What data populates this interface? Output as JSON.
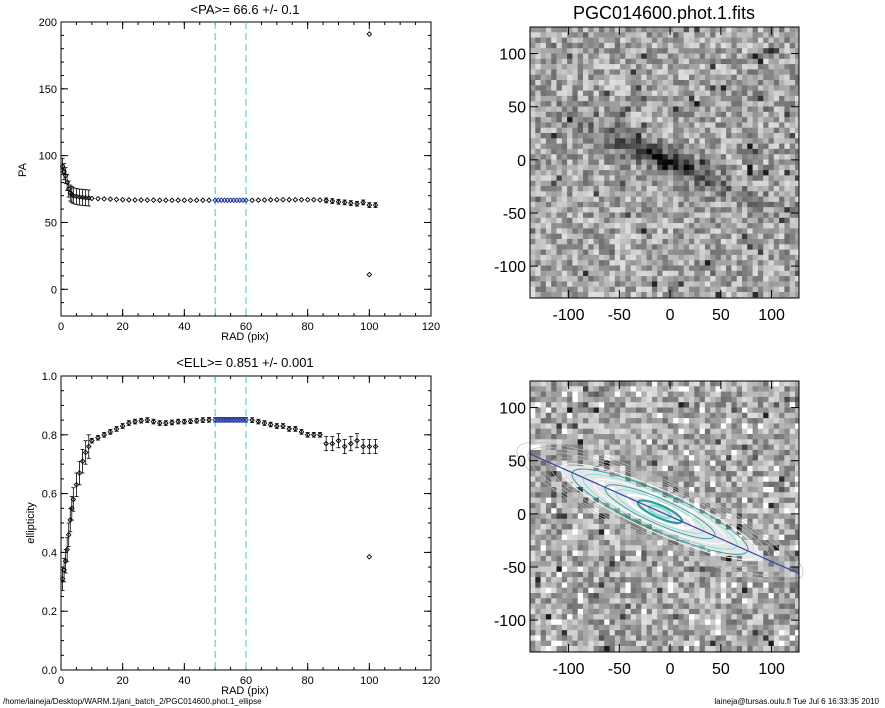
{
  "chart_data": [
    {
      "type": "scatter",
      "title": "<PA>=  66.6 +/-   0.1",
      "xlabel": "RAD (pix)",
      "ylabel": "PA",
      "xlim": [
        0,
        120
      ],
      "ylim": [
        -20,
        200
      ],
      "xticks": [
        "0",
        "20",
        "40",
        "60",
        "80",
        "100",
        "120"
      ],
      "yticks": [
        "0",
        "50",
        "100",
        "150",
        "200"
      ],
      "vlines": [
        50,
        60
      ],
      "highlight_range": [
        50,
        60
      ],
      "outliers": [
        {
          "x": 100,
          "y": 191
        },
        {
          "x": 100,
          "y": 11
        }
      ],
      "x": [
        0.5,
        1,
        1.5,
        2,
        2.5,
        3,
        3.5,
        4,
        5,
        6,
        7,
        8,
        9,
        10,
        12,
        14,
        16,
        18,
        20,
        22,
        24,
        26,
        28,
        30,
        32,
        34,
        36,
        38,
        40,
        42,
        44,
        46,
        48,
        50,
        51,
        52,
        53,
        54,
        55,
        56,
        57,
        58,
        59,
        60,
        62,
        64,
        66,
        68,
        70,
        72,
        74,
        76,
        78,
        80,
        82,
        84,
        86,
        88,
        90,
        92,
        94,
        96,
        98,
        100,
        102
      ],
      "y": [
        92,
        88,
        85,
        80,
        75,
        72,
        71,
        70,
        69.5,
        69,
        68.8,
        68.5,
        68.3,
        68,
        67.8,
        67.6,
        67.4,
        67.2,
        67,
        66.9,
        66.8,
        66.8,
        66.7,
        66.7,
        66.6,
        66.6,
        66.6,
        66.6,
        66.6,
        66.6,
        66.6,
        66.6,
        66.6,
        66.6,
        66.6,
        66.6,
        66.6,
        66.6,
        66.6,
        66.6,
        66.6,
        66.6,
        66.6,
        66.6,
        66.6,
        66.7,
        66.8,
        66.9,
        67,
        67,
        67,
        67,
        67,
        67,
        67,
        66.8,
        66.5,
        66,
        65.5,
        65,
        64.5,
        64,
        65,
        63,
        63
      ]
    },
    {
      "type": "scatter",
      "title": "<ELL>= 0.851 +/-  0.001",
      "xlabel": "RAD (pix)",
      "ylabel": "ellipticity",
      "xlim": [
        0,
        120
      ],
      "ylim": [
        0,
        1
      ],
      "xticks": [
        "0",
        "20",
        "40",
        "60",
        "80",
        "100",
        "120"
      ],
      "yticks": [
        "0.0",
        "0.2",
        "0.4",
        "0.6",
        "0.8",
        "1.0"
      ],
      "vlines": [
        50,
        60
      ],
      "highlight_range": [
        50,
        60
      ],
      "outliers": [
        {
          "x": 100,
          "y": 0.385
        }
      ],
      "x": [
        0.5,
        1,
        1.5,
        2,
        2.5,
        3,
        3.5,
        4,
        5,
        6,
        7,
        8,
        9,
        10,
        12,
        14,
        16,
        18,
        20,
        22,
        24,
        26,
        28,
        30,
        32,
        34,
        36,
        38,
        40,
        42,
        44,
        46,
        48,
        50,
        51,
        52,
        53,
        54,
        55,
        56,
        57,
        58,
        59,
        60,
        62,
        64,
        66,
        68,
        70,
        72,
        74,
        76,
        78,
        80,
        82,
        84,
        86,
        88,
        90,
        92,
        94,
        96,
        98,
        100,
        102
      ],
      "y": [
        0.31,
        0.34,
        0.37,
        0.41,
        0.46,
        0.51,
        0.55,
        0.58,
        0.63,
        0.67,
        0.71,
        0.74,
        0.76,
        0.78,
        0.79,
        0.8,
        0.81,
        0.82,
        0.83,
        0.84,
        0.845,
        0.848,
        0.85,
        0.845,
        0.84,
        0.84,
        0.842,
        0.845,
        0.845,
        0.846,
        0.848,
        0.85,
        0.851,
        0.851,
        0.851,
        0.851,
        0.851,
        0.851,
        0.851,
        0.851,
        0.851,
        0.851,
        0.851,
        0.851,
        0.85,
        0.845,
        0.84,
        0.835,
        0.83,
        0.83,
        0.82,
        0.82,
        0.81,
        0.8,
        0.8,
        0.8,
        0.77,
        0.77,
        0.78,
        0.76,
        0.77,
        0.78,
        0.76,
        0.76,
        0.76
      ]
    },
    {
      "type": "heatmap",
      "title": "PGC014600.phot.1.fits",
      "xticks": [
        "-100",
        "-50",
        "0",
        "50",
        "100"
      ],
      "yticks": [
        "100",
        "50",
        "0",
        "-50",
        "-100"
      ],
      "xlim": [
        -138,
        127
      ],
      "ylim": [
        -130,
        125
      ]
    },
    {
      "type": "heatmap",
      "title": "",
      "xticks": [
        "-100",
        "-50",
        "0",
        "50",
        "100"
      ],
      "yticks": [
        "100",
        "50",
        "0",
        "-50",
        "-100"
      ],
      "xlim": [
        -138,
        127
      ],
      "ylim": [
        -130,
        125
      ],
      "contour_colors": [
        "#ffffff",
        "#7fe0d8",
        "#2a9d9a"
      ],
      "line_color": "#3344aa"
    }
  ],
  "footer": {
    "left": "/home/laineja/Desktop/WARM.1/jani_batch_2/PGC014600.phot.1_ellipse",
    "right": "laineja@tursas.oulu.fi  Tue Jul  6 16:33:35 2010"
  },
  "colors": {
    "vline": "#33cccc",
    "highlight": "#1a2a9a",
    "marker": "#000000"
  }
}
